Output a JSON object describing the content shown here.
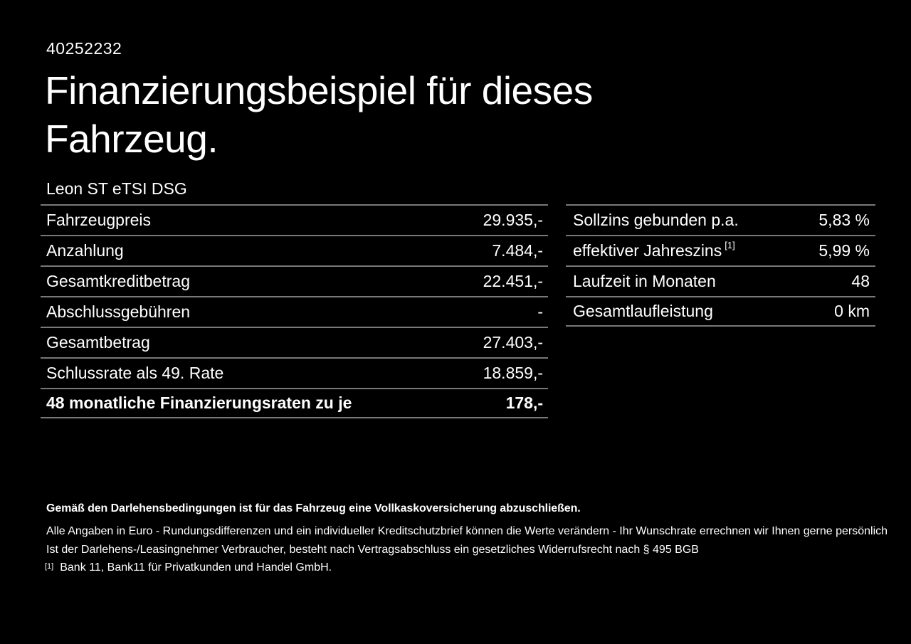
{
  "page": {
    "background": "#000000",
    "text_color": "#ffffff",
    "divider_color": "#787878"
  },
  "header": {
    "vehicle_id": "40252232",
    "title": "Finanzierungsbeispiel für dieses Fahrzeug.",
    "vehicle_model": "Leon ST eTSI DSG"
  },
  "finance_table": {
    "rows": [
      {
        "label": "Fahrzeugpreis",
        "value": "29.935,-"
      },
      {
        "label": "Anzahlung",
        "value": "7.484,-"
      },
      {
        "label": "Gesamtkreditbetrag",
        "value": "22.451,-"
      },
      {
        "label": "Abschlussgebühren",
        "value": "-"
      },
      {
        "label": "Gesamtbetrag",
        "value": "27.403,-"
      },
      {
        "label": "Schlussrate als 49. Rate",
        "value": "18.859,-"
      },
      {
        "label": "48 monatliche Finanzierungsraten zu je",
        "value": "178,-"
      }
    ]
  },
  "conditions_table": {
    "rows": [
      {
        "label": "Sollzins gebunden p.a.",
        "value": "5,83 %"
      },
      {
        "label": "effektiver Jahreszins",
        "sup": "[1]",
        "value": "5,99 %"
      },
      {
        "label": "Laufzeit in Monaten",
        "value": "48"
      },
      {
        "label": "Gesamtlaufleistung",
        "value": "0 km"
      }
    ]
  },
  "disclaimers": {
    "insurance_note": "Gemäß den Darlehensbedingungen ist für das Fahrzeug eine Vollkaskoversicherung abzuschließen.",
    "line1": "Alle Angaben in Euro - Rundungsdifferenzen und ein individueller Kreditschutzbrief können die Werte verändern - Ihr Wunschrate errechnen wir Ihnen gerne persönlich",
    "line2": "Ist der Darlehens-/Leasingnehmer Verbraucher, besteht nach Vertragsabschluss ein gesetzliches Widerrufsrecht nach § 495 BGB",
    "footnote_marker": "[1]",
    "footnote_text": "Bank 11, Bank11 für Privatkunden und Handel GmbH."
  }
}
